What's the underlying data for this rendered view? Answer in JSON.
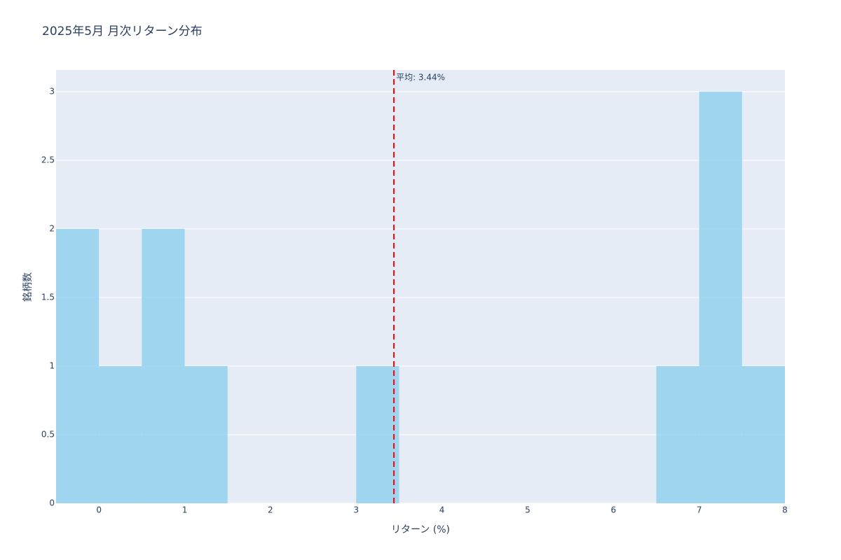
{
  "chart_data": {
    "type": "histogram",
    "title": "2025年5月 月次リターン分布",
    "x_label": "リターン (%)",
    "y_label": "銘柄数",
    "bins": [
      -0.5,
      0,
      0.5,
      1,
      1.5,
      2,
      2.5,
      3,
      3.5,
      4,
      4.5,
      5,
      5.5,
      6,
      6.5,
      7,
      7.5,
      8
    ],
    "values": [
      2,
      1,
      2,
      1,
      0,
      0,
      0,
      1,
      0,
      0,
      0,
      0,
      0,
      0,
      1,
      3,
      1
    ],
    "color": "#87ceeb",
    "xlim": [
      -0.5,
      8
    ],
    "xticks": [
      0,
      1,
      2,
      3,
      4,
      5,
      6,
      7,
      8
    ],
    "ylim": [
      0,
      3.158
    ],
    "yticks": [
      0,
      0.5,
      1,
      1.5,
      2,
      2.5,
      3
    ],
    "grid": true,
    "mean": {
      "value": 3.44,
      "label": "平均: 3.44%",
      "color": "#ff0000"
    }
  }
}
